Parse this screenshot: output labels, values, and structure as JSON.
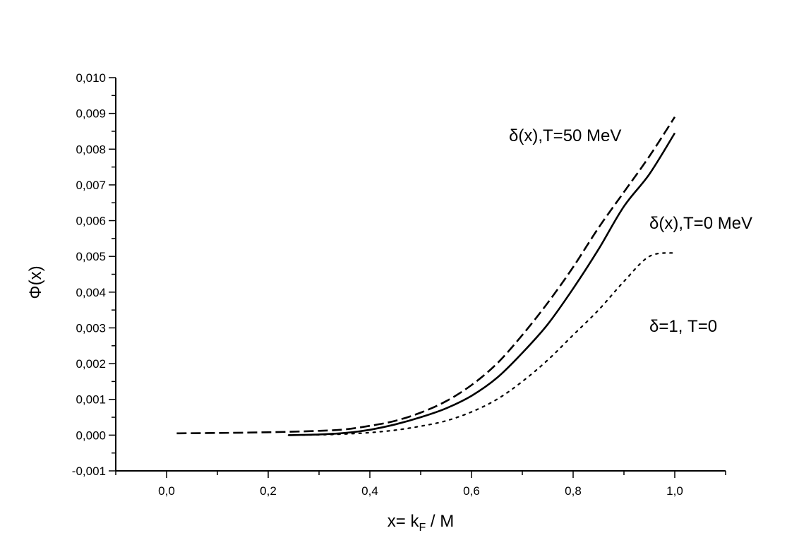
{
  "chart_data": {
    "type": "line",
    "title": "",
    "xlabel": "x= k",
    "xlabel_sub": "F",
    "xlabel_suffix": " / M",
    "ylabel": "Φ(x)",
    "xlim": [
      -0.1,
      1.1
    ],
    "ylim": [
      -0.001,
      0.01
    ],
    "grid": false,
    "x_ticks": [
      0.0,
      0.2,
      0.4,
      0.6,
      0.8,
      1.0
    ],
    "x_tick_labels": [
      "0,0",
      "0,2",
      "0,4",
      "0,6",
      "0,8",
      "1,0"
    ],
    "y_ticks": [
      -0.001,
      0.0,
      0.001,
      0.002,
      0.003,
      0.004,
      0.005,
      0.006,
      0.007,
      0.008,
      0.009,
      0.01
    ],
    "y_tick_labels": [
      "-0,001",
      "0,000",
      "0,001",
      "0,002",
      "0,003",
      "0,004",
      "0,005",
      "0,006",
      "0,007",
      "0,008",
      "0,009",
      "0,010"
    ],
    "series": [
      {
        "style": "dashed",
        "x": [
          0.02,
          0.1,
          0.2,
          0.3,
          0.35,
          0.4,
          0.45,
          0.5,
          0.55,
          0.6,
          0.65,
          0.7,
          0.75,
          0.8,
          0.85,
          0.9,
          0.95,
          1.0
        ],
        "y": [
          5e-05,
          6e-05,
          8e-05,
          0.00012,
          0.00016,
          0.00026,
          0.0004,
          0.00063,
          0.00095,
          0.0014,
          0.002,
          0.0028,
          0.0037,
          0.0047,
          0.0058,
          0.0068,
          0.0078,
          0.0089
        ]
      },
      {
        "style": "solid",
        "x": [
          0.24,
          0.3,
          0.35,
          0.4,
          0.45,
          0.5,
          0.55,
          0.6,
          0.65,
          0.7,
          0.75,
          0.8,
          0.85,
          0.9,
          0.95,
          1.0
        ],
        "y": [
          0.0,
          2e-05,
          6e-05,
          0.00015,
          0.0003,
          0.0005,
          0.00075,
          0.0011,
          0.0016,
          0.0023,
          0.0031,
          0.0041,
          0.0052,
          0.0064,
          0.0073,
          0.00845
        ]
      },
      {
        "style": "dotted",
        "x": [
          0.24,
          0.3,
          0.35,
          0.4,
          0.45,
          0.5,
          0.55,
          0.6,
          0.65,
          0.7,
          0.75,
          0.8,
          0.85,
          0.9,
          0.95,
          1.0
        ],
        "y": [
          0.0,
          1e-05,
          3e-05,
          7e-05,
          0.00014,
          0.00025,
          0.0004,
          0.00065,
          0.001,
          0.0015,
          0.0021,
          0.0028,
          0.0035,
          0.0043,
          0.005,
          0.0051
        ]
      }
    ],
    "annotations": [
      {
        "text": "δ(x),T=50 MeV",
        "anchor": "upper right, beside dashed curve"
      },
      {
        "text": "δ(x),T=0 MeV",
        "anchor": "right, beside solid curve"
      },
      {
        "text": "δ=1, T=0",
        "anchor": "right, beside dotted curve"
      }
    ]
  }
}
